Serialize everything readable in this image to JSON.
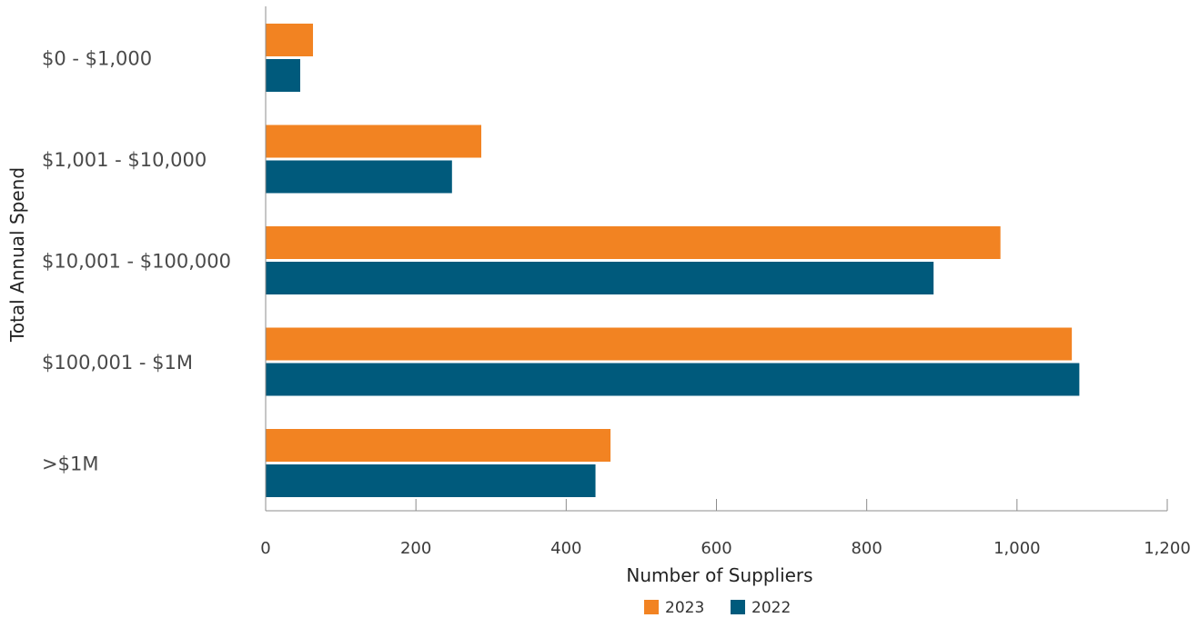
{
  "chart_data": {
    "type": "bar",
    "orientation": "horizontal",
    "categories": [
      "$0 - $1,000",
      "$1,001 - $10,000",
      "$10,001 - $100,000",
      "$100,001 - $1M",
      ">$1M"
    ],
    "series": [
      {
        "name": "2023",
        "color": "#F28322",
        "values": [
          63,
          287,
          978,
          1073,
          459
        ]
      },
      {
        "name": "2022",
        "color": "#005A7C",
        "values": [
          46,
          248,
          889,
          1083,
          439
        ]
      }
    ],
    "xlabel": "Number of Suppliers",
    "ylabel": "Total Annual Spend",
    "xlim": [
      0,
      1200
    ],
    "xticks": [
      0,
      200,
      400,
      600,
      800,
      1000,
      1200
    ],
    "xtick_labels": [
      "0",
      "200",
      "400",
      "600",
      "800",
      "1,000",
      "1,200"
    ],
    "grid": false,
    "legend": "bottom"
  }
}
